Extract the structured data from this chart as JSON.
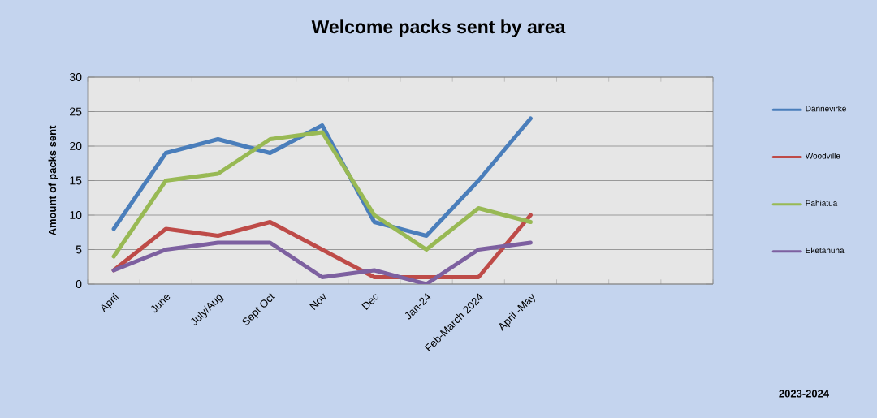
{
  "chart_data": {
    "type": "line",
    "title": "Welcome packs sent by area",
    "ylabel": "Amount of packs sent",
    "categories": [
      "April",
      "June",
      "July/Aug",
      "Sept Oct",
      "Nov",
      "Dec",
      "Jan-24",
      "Feb-March 2024",
      "April -May",
      null,
      null,
      null
    ],
    "series": [
      {
        "name": "Dannevirke",
        "color": "#4a7ebb",
        "values": [
          8,
          19,
          21,
          19,
          23,
          9,
          7,
          15,
          24,
          null,
          null,
          null
        ]
      },
      {
        "name": "Woodville",
        "color": "#be4b48",
        "values": [
          2,
          8,
          7,
          9,
          5,
          1,
          1,
          1,
          10,
          null,
          null,
          null
        ]
      },
      {
        "name": "Pahiatua",
        "color": "#98b954",
        "values": [
          4,
          15,
          16,
          21,
          22,
          10,
          5,
          11,
          9,
          null,
          null,
          null
        ]
      },
      {
        "name": "Eketahuna",
        "color": "#7d60a0",
        "values": [
          2,
          5,
          6,
          6,
          1,
          2,
          0,
          5,
          6,
          null,
          null,
          null
        ]
      }
    ],
    "ylim": [
      0,
      30
    ],
    "yticks": [
      0,
      5,
      10,
      15,
      20,
      25,
      30
    ],
    "grid": "y",
    "legend": "right",
    "marker": "none",
    "line_style": "solid",
    "annotations": [
      "2023-2024"
    ]
  }
}
